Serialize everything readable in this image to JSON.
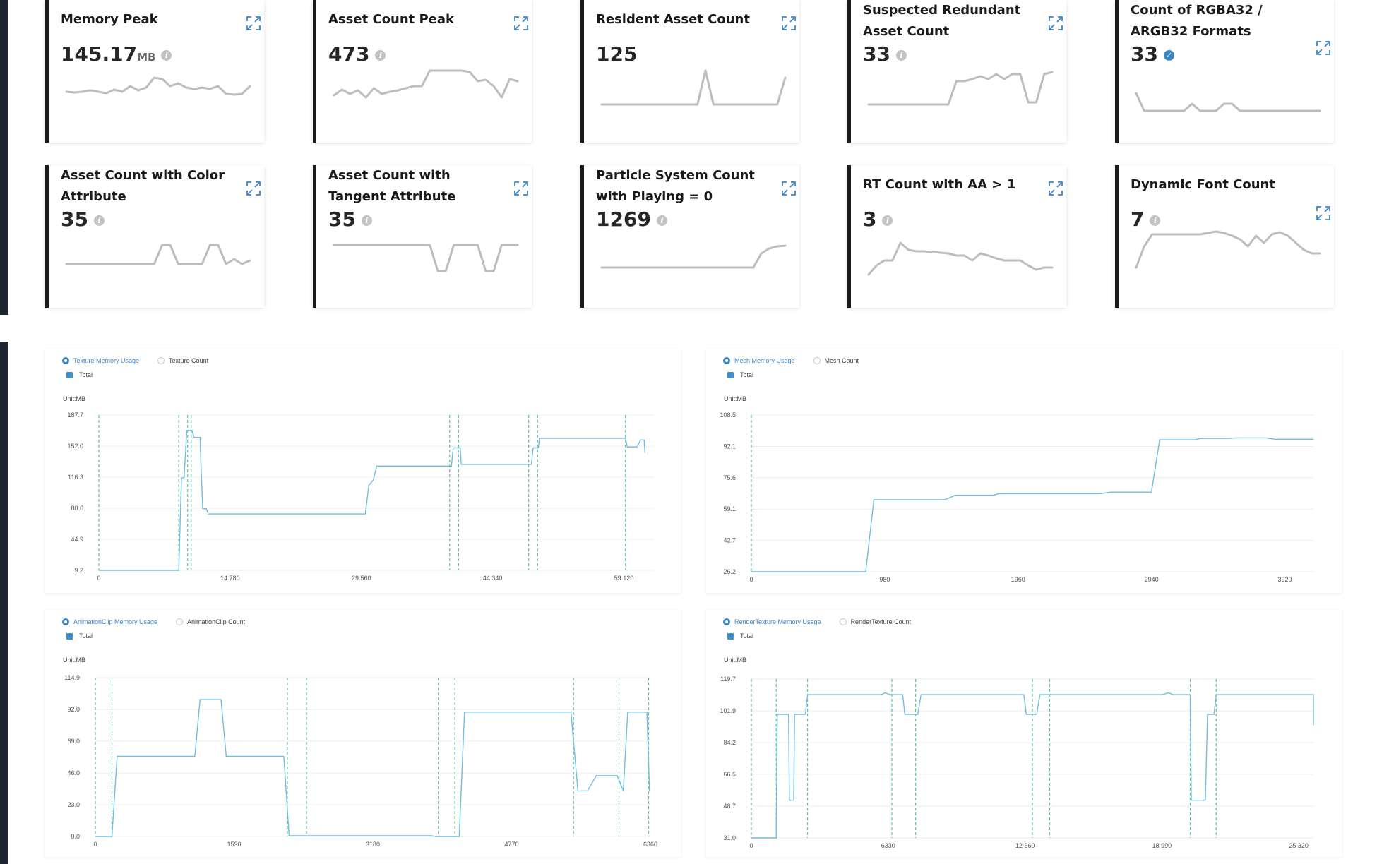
{
  "cards": [
    {
      "title": "Memory Peak",
      "value": "145.17",
      "unit": "MB",
      "badge": "info",
      "spark": [
        30,
        31,
        30,
        28,
        30,
        32,
        27,
        30,
        22,
        28,
        24,
        10,
        12,
        22,
        18,
        24,
        26,
        24,
        26,
        22,
        33,
        34,
        33,
        22
      ]
    },
    {
      "title": "Asset Count Peak",
      "value": "473",
      "badge": "info",
      "spark": [
        35,
        27,
        33,
        28,
        38,
        25,
        33,
        30,
        28,
        25,
        22,
        22,
        0,
        0,
        0,
        0,
        0,
        2,
        15,
        13,
        22,
        38,
        12,
        15
      ]
    },
    {
      "title": "Resident Asset Count",
      "value": "125",
      "badge": "none",
      "spark": [
        48,
        48,
        48,
        48,
        48,
        48,
        48,
        48,
        48,
        48,
        48,
        48,
        48,
        0,
        48,
        48,
        48,
        48,
        48,
        48,
        48,
        48,
        48,
        10
      ]
    },
    {
      "title": "Suspected Redundant Asset Count",
      "value": "33",
      "badge": "info",
      "spark": [
        48,
        48,
        48,
        48,
        48,
        48,
        48,
        48,
        48,
        48,
        48,
        15,
        15,
        12,
        8,
        12,
        5,
        12,
        5,
        5,
        45,
        45,
        5,
        2
      ]
    },
    {
      "title": "Count of RGBA32 / ARGB32 Formats",
      "value": "33",
      "badge": "check",
      "spark": [
        20,
        45,
        45,
        45,
        45,
        45,
        45,
        35,
        45,
        45,
        45,
        35,
        35,
        45,
        45,
        45,
        45,
        45,
        45,
        45,
        45,
        45,
        45,
        45
      ]
    },
    {
      "title": "Asset Count with Color Attribute",
      "value": "35",
      "badge": "info",
      "spark": [
        40,
        40,
        40,
        40,
        40,
        40,
        40,
        40,
        40,
        40,
        40,
        40,
        13,
        13,
        40,
        40,
        40,
        40,
        13,
        13,
        40,
        33,
        40,
        35
      ]
    },
    {
      "title": "Asset Count with Tangent Attribute",
      "value": "35",
      "badge": "info",
      "spark": [
        13,
        13,
        13,
        13,
        13,
        13,
        13,
        13,
        13,
        13,
        13,
        13,
        13,
        50,
        50,
        13,
        13,
        13,
        13,
        50,
        50,
        13,
        13,
        13
      ]
    },
    {
      "title": "Particle System Count with Playing = 0",
      "value": "1269",
      "badge": "info",
      "spark": [
        45,
        45,
        45,
        45,
        45,
        45,
        45,
        45,
        45,
        45,
        45,
        45,
        45,
        45,
        45,
        45,
        45,
        45,
        45,
        45,
        25,
        18,
        15,
        14
      ]
    },
    {
      "title": "RT Count with AA > 1",
      "value": "3",
      "badge": "info",
      "spark": [
        55,
        42,
        35,
        35,
        10,
        20,
        22,
        22,
        23,
        24,
        25,
        28,
        28,
        35,
        25,
        28,
        32,
        35,
        35,
        35,
        42,
        48,
        45,
        45
      ]
    },
    {
      "title": "Dynamic Font Count",
      "value": "7",
      "badge": "info",
      "spark": [
        55,
        25,
        8,
        8,
        8,
        8,
        8,
        8,
        8,
        6,
        4,
        6,
        10,
        15,
        25,
        10,
        20,
        8,
        5,
        10,
        20,
        30,
        35,
        35
      ]
    }
  ],
  "panels": [
    {
      "radio_selected": "Texture Memory Usage",
      "radio_other": "Texture Count",
      "series_name": "Total",
      "unit": "Unit:MB",
      "yticks": [
        "187.7",
        "152.0",
        "116.3",
        "80.6",
        "44.9",
        "9.2"
      ],
      "xticks": [
        "0",
        "14 780",
        "29 560",
        "44 340",
        "59 120"
      ],
      "chart_data": {
        "type": "line",
        "ylim": [
          9.2,
          187.7
        ],
        "xlim": [
          0,
          62500
        ],
        "xtick_values": [
          0,
          14780,
          29560,
          44340,
          59120
        ],
        "series": [
          {
            "name": "Total",
            "points": [
              [
                0,
                9.2
              ],
              [
                9000,
                9.2
              ],
              [
                9100,
                44
              ],
              [
                9300,
                115
              ],
              [
                9600,
                116
              ],
              [
                9900,
                170
              ],
              [
                10500,
                170
              ],
              [
                10700,
                162
              ],
              [
                11400,
                162
              ],
              [
                11500,
                129
              ],
              [
                11700,
                80
              ],
              [
                12100,
                80
              ],
              [
                12300,
                74
              ],
              [
                30000,
                74
              ],
              [
                30400,
                107
              ],
              [
                30900,
                113
              ],
              [
                31300,
                129
              ],
              [
                39700,
                129
              ],
              [
                39900,
                150
              ],
              [
                40700,
                150
              ],
              [
                40800,
                131
              ],
              [
                48700,
                131
              ],
              [
                48900,
                150
              ],
              [
                49500,
                150
              ],
              [
                49600,
                161
              ],
              [
                59300,
                161
              ],
              [
                59500,
                151
              ],
              [
                60600,
                151
              ],
              [
                61000,
                159
              ],
              [
                61400,
                159
              ],
              [
                61500,
                144
              ]
            ]
          }
        ],
        "markers": [
          0,
          9000,
          10000,
          10400,
          39500,
          40500,
          48400,
          49400,
          59300
        ]
      }
    },
    {
      "radio_selected": "Mesh Memory Usage",
      "radio_other": "Mesh Count",
      "series_name": "Total",
      "unit": "Unit:MB",
      "yticks": [
        "108.5",
        "92.1",
        "75.6",
        "59.1",
        "42.7",
        "26.2"
      ],
      "xticks": [
        "0",
        "980",
        "1960",
        "2940",
        "3920"
      ],
      "chart_data": {
        "type": "line",
        "ylim": [
          26.2,
          108.5
        ],
        "xlim": [
          0,
          4130
        ],
        "xtick_values": [
          0,
          980,
          1960,
          2940,
          3920
        ],
        "series": [
          {
            "name": "Total",
            "points": [
              [
                0,
                26.2
              ],
              [
                840,
                26.2
              ],
              [
                900,
                64
              ],
              [
                1420,
                64
              ],
              [
                1500,
                66.4
              ],
              [
                1780,
                66.4
              ],
              [
                1820,
                67.2
              ],
              [
                2560,
                67.2
              ],
              [
                2640,
                68
              ],
              [
                2940,
                68
              ],
              [
                3000,
                95.5
              ],
              [
                3260,
                95.5
              ],
              [
                3300,
                96.2
              ],
              [
                3500,
                96.2
              ],
              [
                3560,
                96.5
              ],
              [
                3780,
                96.5
              ],
              [
                3850,
                95.8
              ],
              [
                4130,
                95.8
              ]
            ]
          }
        ],
        "markers": [
          0
        ]
      }
    },
    {
      "radio_selected": "AnimationClip Memory Usage",
      "radio_other": "AnimationClip Count",
      "series_name": "Total",
      "unit": "Unit:MB",
      "yticks": [
        "114.9",
        "92.0",
        "69.0",
        "46.0",
        "23.0",
        "0.0"
      ],
      "xticks": [
        "0",
        "1590",
        "3180",
        "4770",
        "6360"
      ],
      "chart_data": {
        "type": "line",
        "ylim": [
          0,
          114.9
        ],
        "xlim": [
          0,
          6360
        ],
        "xtick_values": [
          0,
          1590,
          3180,
          4770,
          6360
        ],
        "series": [
          {
            "name": "Total",
            "points": [
              [
                0,
                0
              ],
              [
                190,
                0
              ],
              [
                250,
                58
              ],
              [
                1140,
                58
              ],
              [
                1200,
                99
              ],
              [
                1440,
                99
              ],
              [
                1500,
                58
              ],
              [
                2160,
                58
              ],
              [
                2220,
                0.5
              ],
              [
                3850,
                0.5
              ],
              [
                3900,
                0
              ],
              [
                4170,
                0
              ],
              [
                4230,
                90
              ],
              [
                5450,
                90
              ],
              [
                5530,
                33
              ],
              [
                5640,
                33
              ],
              [
                5740,
                44
              ],
              [
                5980,
                44
              ],
              [
                6050,
                33
              ],
              [
                6100,
                90
              ],
              [
                6320,
                90
              ],
              [
                6350,
                33
              ]
            ]
          }
        ],
        "markers": [
          0,
          190,
          2200,
          2420,
          3930,
          4120,
          5480,
          6000,
          6340
        ]
      }
    },
    {
      "radio_selected": "RenderTexture Memory Usage",
      "radio_other": "RenderTexture Count",
      "series_name": "Total",
      "unit": "Unit:MB",
      "yticks": [
        "119.7",
        "101.9",
        "84.2",
        "66.5",
        "48.7",
        "31.0"
      ],
      "xticks": [
        "0",
        "6330",
        "12 660",
        "18 990",
        "25 320"
      ],
      "chart_data": {
        "type": "line",
        "ylim": [
          31.0,
          119.7
        ],
        "xlim": [
          0,
          26000
        ],
        "xtick_values": [
          0,
          6330,
          12660,
          18990,
          25320
        ],
        "series": [
          {
            "name": "Total",
            "points": [
              [
                0,
                31
              ],
              [
                1150,
                31
              ],
              [
                1200,
                100
              ],
              [
                1720,
                100
              ],
              [
                1760,
                52
              ],
              [
                1960,
                52
              ],
              [
                2000,
                100
              ],
              [
                2500,
                100
              ],
              [
                2600,
                111
              ],
              [
                6000,
                111
              ],
              [
                6200,
                112
              ],
              [
                6400,
                111
              ],
              [
                7000,
                111
              ],
              [
                7100,
                100
              ],
              [
                7700,
                100
              ],
              [
                7850,
                111
              ],
              [
                12600,
                111
              ],
              [
                12720,
                100
              ],
              [
                13200,
                100
              ],
              [
                13350,
                111
              ],
              [
                19000,
                111
              ],
              [
                19300,
                112
              ],
              [
                19500,
                111
              ],
              [
                20300,
                111
              ],
              [
                20350,
                52
              ],
              [
                21000,
                52
              ],
              [
                21100,
                100
              ],
              [
                21400,
                100
              ],
              [
                21500,
                111
              ],
              [
                26000,
                111
              ],
              [
                26000,
                94
              ]
            ]
          }
        ],
        "markers": [
          0,
          1150,
          2600,
          6500,
          7600,
          13000,
          13800,
          20300,
          21500
        ]
      }
    }
  ],
  "colors": {
    "accent": "#3d86c6",
    "line": "#74bedd",
    "marker": "#5fc2a4",
    "spark": "#bdbdbd",
    "card_border": "#1b1b1b"
  },
  "icons": {
    "expand": "expand-icon",
    "info": "info-icon",
    "check": "check-icon",
    "radio": "radio-icon"
  }
}
